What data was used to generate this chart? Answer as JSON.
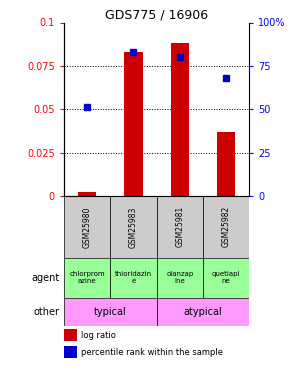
{
  "title": "GDS775 / 16906",
  "samples": [
    "GSM25980",
    "GSM25983",
    "GSM25981",
    "GSM25982"
  ],
  "log_ratio": [
    0.002,
    0.083,
    0.088,
    0.037
  ],
  "percentile_rank": [
    0.051,
    0.083,
    0.08,
    0.068
  ],
  "ylim": [
    0,
    0.1
  ],
  "yticks": [
    0,
    0.025,
    0.05,
    0.075,
    0.1
  ],
  "ytick_labels_left": [
    "0",
    "0.025",
    "0.05",
    "0.075",
    "0.1"
  ],
  "ytick_labels_right": [
    "0",
    "25",
    "50",
    "75",
    "100%"
  ],
  "bar_color": "#cc0000",
  "dot_color": "#0000cc",
  "agent_labels": [
    "chlorprom\nazine",
    "thioridazin\ne",
    "olanzap\nine",
    "quetiapi\nne"
  ],
  "agent_color": "#99ff99",
  "typical_label": "typical",
  "atypical_label": "atypical",
  "other_row_color": "#ff99ff",
  "sample_bg_color": "#cccccc",
  "legend_red": "log ratio",
  "legend_blue": "percentile rank within the sample"
}
